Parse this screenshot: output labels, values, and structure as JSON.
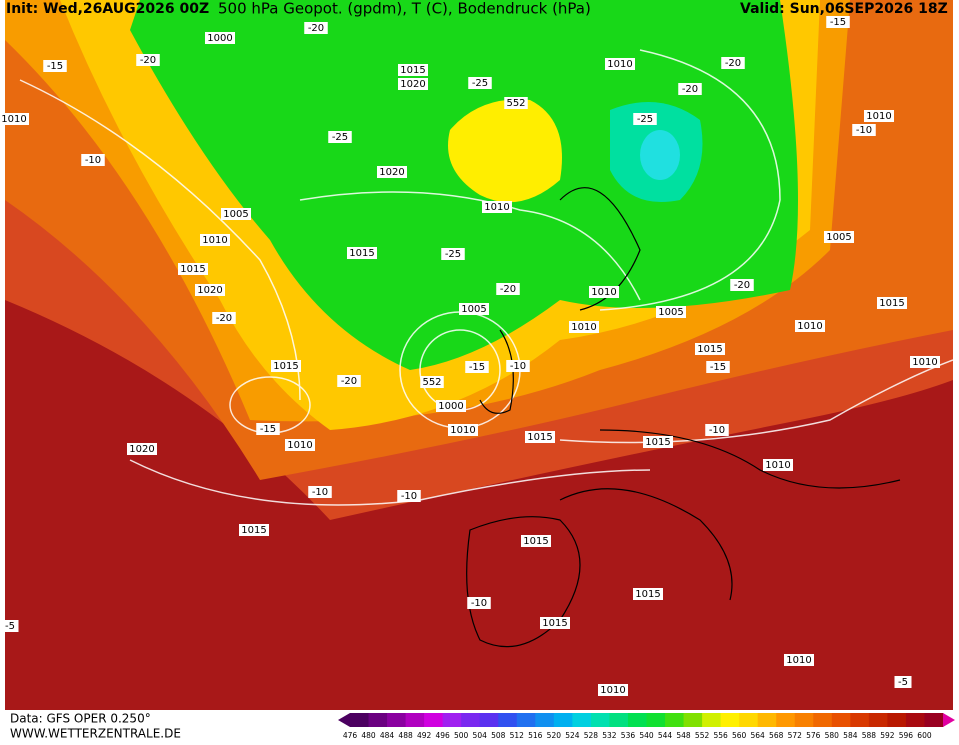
{
  "header": {
    "init": "Init: Wed,26AUG2026 00Z",
    "title": "500 hPa Geopot. (gpdm), T (C), Bodendruck (hPa)",
    "valid": "Valid: Sun,06SEP2026 18Z"
  },
  "map_labels": [
    "1000",
    "1015",
    "1020",
    "1010",
    "-20",
    "-20",
    "-15",
    "-25",
    "552",
    "-25",
    "-25",
    "-20",
    "-20",
    "-15",
    "1010",
    "-10",
    "1010",
    "-10",
    "1020",
    "1010",
    "1005",
    "1010",
    "1015",
    "-25",
    "1015",
    "1020",
    "1005",
    "1005",
    "-20",
    "1010",
    "-20",
    "1005",
    "1010",
    "1015",
    "1010",
    "-20",
    "1015",
    "-15",
    "1010",
    "1015",
    "-20",
    "-15",
    "-10",
    "552",
    "1000",
    "1010",
    "-15",
    "1010",
    "1015",
    "1015",
    "-10",
    "1020",
    "1010",
    "-10",
    "-10",
    "1015",
    "1015",
    "-10",
    "1015",
    "1015",
    "1010",
    "1010",
    "-5",
    "-5"
  ],
  "colorbar": {
    "labels": [
      476,
      480,
      484,
      488,
      492,
      496,
      500,
      504,
      508,
      512,
      516,
      520,
      524,
      528,
      532,
      536,
      540,
      544,
      548,
      552,
      556,
      560,
      564,
      568,
      572,
      576,
      580,
      584,
      588,
      592,
      596,
      600
    ],
    "colors": [
      "#4b0060",
      "#6a0080",
      "#8a00a0",
      "#b000c0",
      "#d000e0",
      "#a020f0",
      "#7a28f0",
      "#5a30f0",
      "#3050f0",
      "#2070f0",
      "#1090f0",
      "#00b0f0",
      "#00d0e0",
      "#00e0b0",
      "#00e080",
      "#00e050",
      "#10e030",
      "#40e010",
      "#80e000",
      "#d0f000",
      "#fff000",
      "#ffd800",
      "#ffb800",
      "#ff9800",
      "#f88000",
      "#f06800",
      "#e85000",
      "#d83800",
      "#c82800",
      "#b81800",
      "#a80a10",
      "#980020"
    ]
  },
  "footer": {
    "source": "Data: GFS OPER 0.250°",
    "site": "WWW.WETTERZENTRALE.DE"
  }
}
